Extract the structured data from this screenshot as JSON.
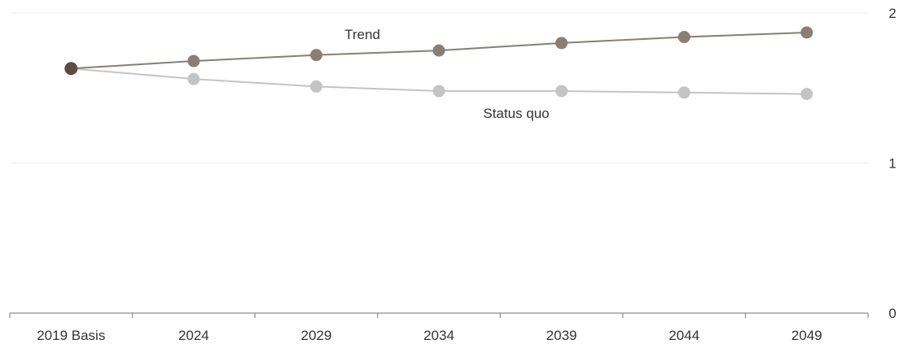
{
  "chart_data": {
    "type": "line",
    "categories": [
      "2019 Basis",
      "2024",
      "2029",
      "2034",
      "2039",
      "2044",
      "2049"
    ],
    "series": [
      {
        "name": "Trend",
        "values": [
          1.63,
          1.68,
          1.72,
          1.75,
          1.8,
          1.84,
          1.87
        ],
        "color": "#8a7e74"
      },
      {
        "name": "Status quo",
        "values": [
          1.63,
          1.56,
          1.51,
          1.48,
          1.48,
          1.47,
          1.46
        ],
        "color": "#c4c4c4"
      }
    ],
    "base_point_color": "#5a4d45",
    "y_ticks": [
      0,
      1,
      2
    ],
    "ylim": [
      0,
      2
    ],
    "y_axis_position": "right",
    "grid": true,
    "legend": "inline labels",
    "title": "",
    "xlabel": "",
    "ylabel": ""
  }
}
